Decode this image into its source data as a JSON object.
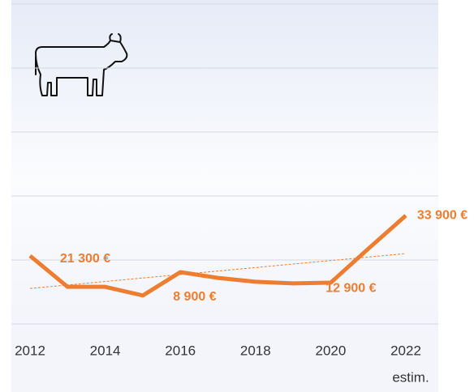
{
  "chart_data": {
    "type": "line",
    "x": [
      2012,
      2013,
      2014,
      2015,
      2016,
      2017,
      2018,
      2019,
      2020,
      2021,
      2022
    ],
    "series": [
      {
        "color": "#ed7d31",
        "values": [
          21300,
          11600,
          11600,
          8900,
          16200,
          14400,
          13200,
          12700,
          12900,
          23500,
          33900
        ],
        "value_labels": [
          "21 300 €",
          null,
          null,
          "8 900 €",
          null,
          null,
          null,
          null,
          "12 900 €",
          null,
          "33 900 €"
        ]
      }
    ],
    "trendline": {
      "color": "#ed7d31",
      "values": [
        11100,
        22000
      ]
    },
    "xlim": [
      2012,
      2022
    ],
    "xticks": [
      2012,
      2014,
      2016,
      2018,
      2020,
      2022
    ],
    "ylim": [
      0,
      100000
    ],
    "yticks": [
      0,
      20000,
      40000,
      60000,
      80000,
      100000
    ],
    "grid": true,
    "annotation": "estim."
  }
}
